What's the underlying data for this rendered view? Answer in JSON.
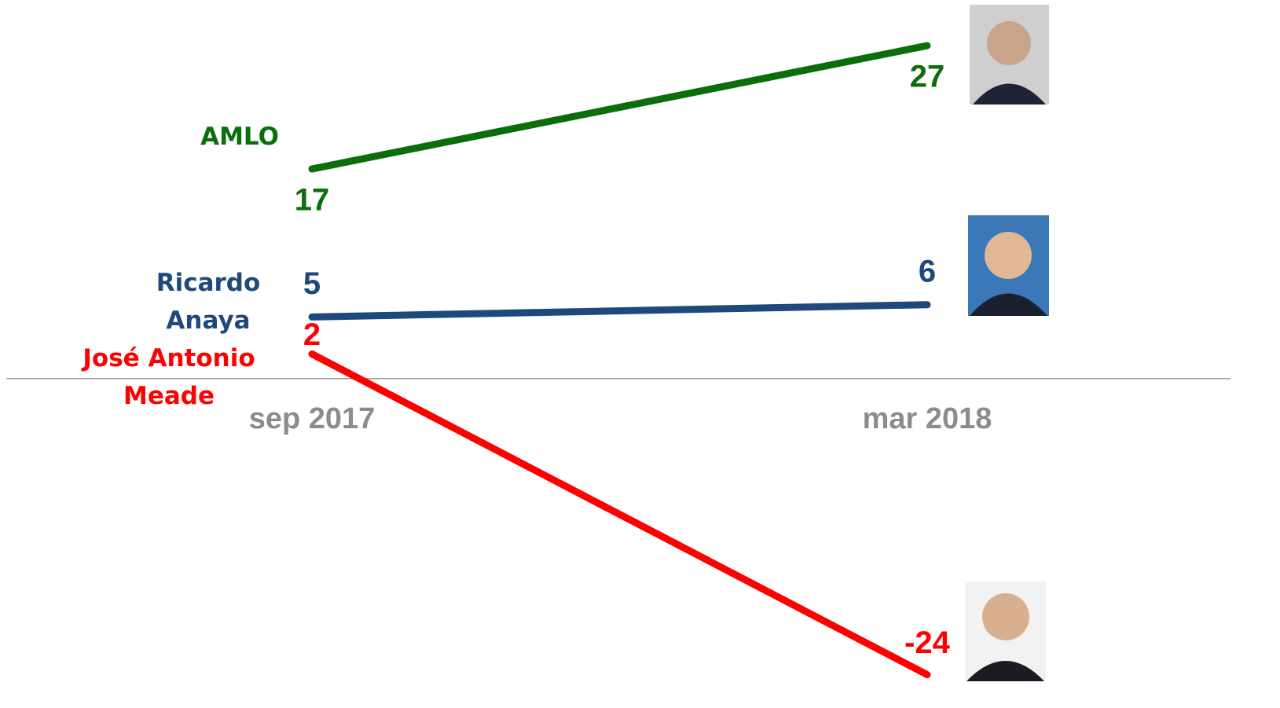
{
  "chart_data": {
    "type": "line",
    "categories": [
      "sep 2017",
      "mar 2018"
    ],
    "series": [
      {
        "name": "AMLO",
        "color": "#0b6e0b",
        "values": [
          17,
          27
        ]
      },
      {
        "name": "Ricardo Anaya",
        "color": "#1f497d",
        "values": [
          5,
          6
        ]
      },
      {
        "name": "José Antonio Meade",
        "color": "#ff0000",
        "values": [
          2,
          -24
        ]
      }
    ],
    "ylim": [
      -26.7,
      30.7
    ]
  }
}
